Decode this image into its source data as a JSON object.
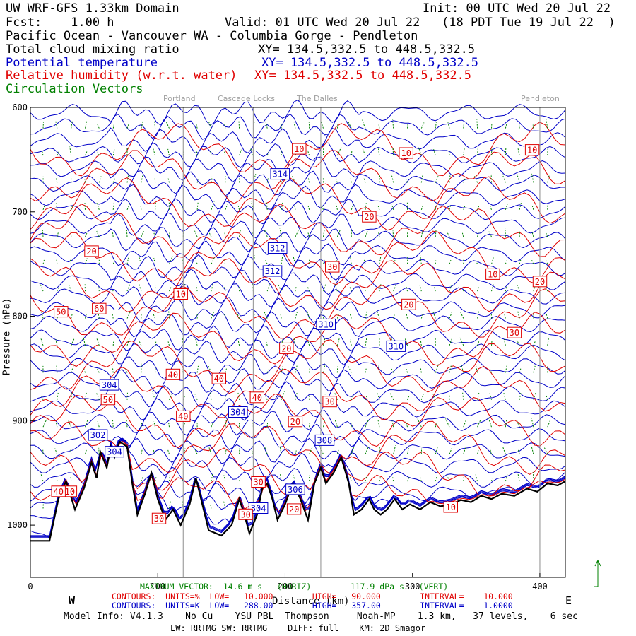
{
  "header": {
    "model": "UW WRF-GFS 1.33km Domain",
    "init": "Init: 00 UTC Wed 20 Jul 22",
    "fcst": "Fcst:    1.00 h",
    "valid": "Valid: 01 UTC Wed 20 Jul 22   (18 PDT Tue 19 Jul 22  )",
    "route": "Pacific Ocean - Vancouver WA - Columbia Gorge - Pendleton"
  },
  "fields": [
    {
      "name": "Total cloud mixing ratio",
      "xy": "XY= 134.5,332.5 to 448.5,332.5",
      "color": "#000000"
    },
    {
      "name": "Potential temperature",
      "xy": "XY= 134.5,332.5 to 448.5,332.5",
      "color": "#0000c8"
    },
    {
      "name": "Relative humidity (w.r.t. water)",
      "xy": "XY= 134.5,332.5 to 448.5,332.5",
      "color": "#e00000"
    },
    {
      "name": "Circulation Vectors",
      "xy": "",
      "color": "#008000"
    }
  ],
  "towns": [
    "Portland",
    "Cascade Locks",
    "The Dalles",
    "Pendleton"
  ],
  "chart_data": {
    "type": "cross-section contour",
    "x_axis": {
      "range": [
        0,
        420
      ],
      "ticks": [
        0,
        100,
        200,
        300,
        400
      ],
      "label": "Distance (km)",
      "west": "W",
      "east": "E"
    },
    "y_axis": {
      "range": [
        1050,
        600
      ],
      "ticks": [
        600,
        700,
        800,
        900,
        1000
      ],
      "label": "Pressure (hPa)"
    },
    "town_km": [
      120,
      175,
      228,
      400
    ],
    "theta_contours": [
      {
        "label": "314",
        "x": 196,
        "p": 664
      },
      {
        "label": "312",
        "x": 194,
        "p": 735
      },
      {
        "label": "312",
        "x": 190,
        "p": 757
      },
      {
        "label": "310",
        "x": 232,
        "p": 808
      },
      {
        "label": "310",
        "x": 287,
        "p": 829
      },
      {
        "label": "304",
        "x": 62,
        "p": 866
      },
      {
        "label": "304",
        "x": 163,
        "p": 892
      },
      {
        "label": "302",
        "x": 53,
        "p": 914
      },
      {
        "label": "304",
        "x": 66,
        "p": 930
      },
      {
        "label": "308",
        "x": 231,
        "p": 919
      },
      {
        "label": "306",
        "x": 208,
        "p": 966
      },
      {
        "label": "304",
        "x": 179,
        "p": 984
      }
    ],
    "rh_contours": [
      {
        "label": "10",
        "x": 211,
        "p": 640
      },
      {
        "label": "10",
        "x": 295,
        "p": 644
      },
      {
        "label": "10",
        "x": 394,
        "p": 641
      },
      {
        "label": "20",
        "x": 266,
        "p": 705
      },
      {
        "label": "20",
        "x": 48,
        "p": 738
      },
      {
        "label": "30",
        "x": 237,
        "p": 753
      },
      {
        "label": "10",
        "x": 363,
        "p": 760
      },
      {
        "label": "20",
        "x": 400,
        "p": 767
      },
      {
        "label": "10",
        "x": 118,
        "p": 779
      },
      {
        "label": "20",
        "x": 297,
        "p": 789
      },
      {
        "label": "50",
        "x": 24,
        "p": 796
      },
      {
        "label": "60",
        "x": 54,
        "p": 793
      },
      {
        "label": "30",
        "x": 380,
        "p": 816
      },
      {
        "label": "20",
        "x": 201,
        "p": 831
      },
      {
        "label": "40",
        "x": 112,
        "p": 856
      },
      {
        "label": "40",
        "x": 148,
        "p": 860
      },
      {
        "label": "50",
        "x": 61,
        "p": 880
      },
      {
        "label": "40",
        "x": 178,
        "p": 878
      },
      {
        "label": "30",
        "x": 235,
        "p": 882
      },
      {
        "label": "40",
        "x": 120,
        "p": 896
      },
      {
        "label": "20",
        "x": 208,
        "p": 901
      },
      {
        "label": "30",
        "x": 179,
        "p": 959
      },
      {
        "label": "10",
        "x": 330,
        "p": 983
      },
      {
        "label": "20",
        "x": 207,
        "p": 985
      },
      {
        "label": "30",
        "x": 169,
        "p": 990
      },
      {
        "label": "30",
        "x": 101,
        "p": 994
      },
      {
        "label": "10",
        "x": 31,
        "p": 968
      },
      {
        "label": "40",
        "x": 22,
        "p": 968
      }
    ],
    "terrain": [
      {
        "x": 0,
        "p": 1015
      },
      {
        "x": 15,
        "p": 1015
      },
      {
        "x": 22,
        "p": 975
      },
      {
        "x": 28,
        "p": 958
      },
      {
        "x": 35,
        "p": 985
      },
      {
        "x": 42,
        "p": 965
      },
      {
        "x": 48,
        "p": 940
      },
      {
        "x": 52,
        "p": 955
      },
      {
        "x": 55,
        "p": 930
      },
      {
        "x": 60,
        "p": 945
      },
      {
        "x": 63,
        "p": 925
      },
      {
        "x": 66,
        "p": 935
      },
      {
        "x": 70,
        "p": 920
      },
      {
        "x": 76,
        "p": 925
      },
      {
        "x": 80,
        "p": 960
      },
      {
        "x": 84,
        "p": 990
      },
      {
        "x": 90,
        "p": 970
      },
      {
        "x": 95,
        "p": 950
      },
      {
        "x": 100,
        "p": 975
      },
      {
        "x": 106,
        "p": 995
      },
      {
        "x": 112,
        "p": 985
      },
      {
        "x": 118,
        "p": 1000
      },
      {
        "x": 125,
        "p": 980
      },
      {
        "x": 130,
        "p": 955
      },
      {
        "x": 134,
        "p": 975
      },
      {
        "x": 140,
        "p": 1005
      },
      {
        "x": 150,
        "p": 1010
      },
      {
        "x": 158,
        "p": 1000
      },
      {
        "x": 164,
        "p": 975
      },
      {
        "x": 168,
        "p": 990
      },
      {
        "x": 172,
        "p": 1008
      },
      {
        "x": 178,
        "p": 990
      },
      {
        "x": 182,
        "p": 965
      },
      {
        "x": 186,
        "p": 960
      },
      {
        "x": 190,
        "p": 975
      },
      {
        "x": 194,
        "p": 995
      },
      {
        "x": 200,
        "p": 980
      },
      {
        "x": 206,
        "p": 960
      },
      {
        "x": 212,
        "p": 975
      },
      {
        "x": 218,
        "p": 995
      },
      {
        "x": 223,
        "p": 960
      },
      {
        "x": 228,
        "p": 945
      },
      {
        "x": 232,
        "p": 960
      },
      {
        "x": 238,
        "p": 950
      },
      {
        "x": 244,
        "p": 935
      },
      {
        "x": 250,
        "p": 960
      },
      {
        "x": 254,
        "p": 990
      },
      {
        "x": 260,
        "p": 985
      },
      {
        "x": 266,
        "p": 975
      },
      {
        "x": 270,
        "p": 985
      },
      {
        "x": 275,
        "p": 990
      },
      {
        "x": 280,
        "p": 985
      },
      {
        "x": 286,
        "p": 975
      },
      {
        "x": 292,
        "p": 985
      },
      {
        "x": 298,
        "p": 980
      },
      {
        "x": 306,
        "p": 985
      },
      {
        "x": 314,
        "p": 978
      },
      {
        "x": 322,
        "p": 982
      },
      {
        "x": 330,
        "p": 980
      },
      {
        "x": 338,
        "p": 976
      },
      {
        "x": 346,
        "p": 978
      },
      {
        "x": 354,
        "p": 972
      },
      {
        "x": 362,
        "p": 975
      },
      {
        "x": 370,
        "p": 970
      },
      {
        "x": 380,
        "p": 972
      },
      {
        "x": 390,
        "p": 965
      },
      {
        "x": 398,
        "p": 968
      },
      {
        "x": 406,
        "p": 960
      },
      {
        "x": 414,
        "p": 962
      },
      {
        "x": 420,
        "p": 958
      }
    ],
    "footer": {
      "max_vector": "MAXIMUM VECTOR:  14.6 m s   (HORIZ)        117.9 dPa s   (VERT)",
      "rh_contours": "CONTOURS:  UNITS=%  LOW=   10.000        HIGH=   90.000        INTERVAL=    10.000",
      "theta_contours": "CONTOURS:  UNITS=K  LOW=   288.00        HIGH=   357.00        INTERVAL=    1.0000",
      "model_info": "Model Info: V4.1.3    No Cu    YSU PBL  Thompson     Noah-MP    1.3 km,   37 levels,    6 sec",
      "physics": "LW: RRTMG SW: RRTMG    DIFF: full    KM: 2D Smagor"
    }
  },
  "colors": {
    "theta": "#0000c8",
    "rh": "#e00000",
    "vectors": "#008000",
    "terrain": "#000000",
    "towns": "#a0a0a0"
  }
}
